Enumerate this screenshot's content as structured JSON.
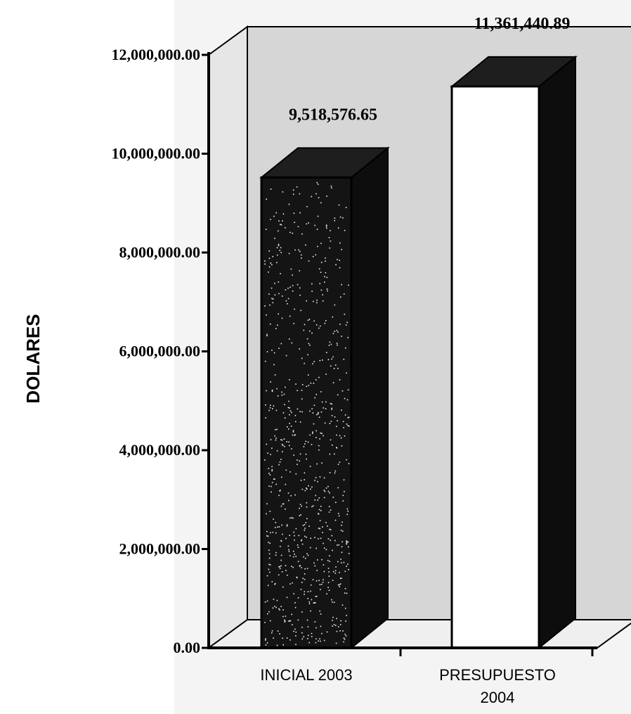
{
  "chart_data": {
    "type": "bar",
    "categories": [
      "INICIAL 2003",
      "PRESUPUESTO 2004"
    ],
    "category_lines": [
      [
        "INICIAL 2003"
      ],
      [
        "PRESUPUESTO",
        "2004"
      ]
    ],
    "values": [
      9518576.65,
      11361440.89
    ],
    "value_labels": [
      "9,518,576.65",
      "11,361,440.89"
    ],
    "ylabel": "DOLARES",
    "ylim": [
      0,
      12000000
    ],
    "yticks": [
      0,
      2000000,
      4000000,
      6000000,
      8000000,
      10000000,
      12000000
    ],
    "ytick_labels": [
      "0.00",
      "2,000,000.00",
      "4,000,000.00",
      "6,000,000.00",
      "8,000,000.00",
      "10,000,000.00",
      "12,000,000.00"
    ],
    "style": "3d",
    "grid": false,
    "legend": "none",
    "colors": {
      "bar_dark": "#141414",
      "bar_light": "#ffffff",
      "bar_side": "#0d0d0d",
      "wall": "#d6d6d6",
      "wall_right": "#e6e6e6",
      "floor": "#efefef",
      "axis": "#000000"
    }
  }
}
